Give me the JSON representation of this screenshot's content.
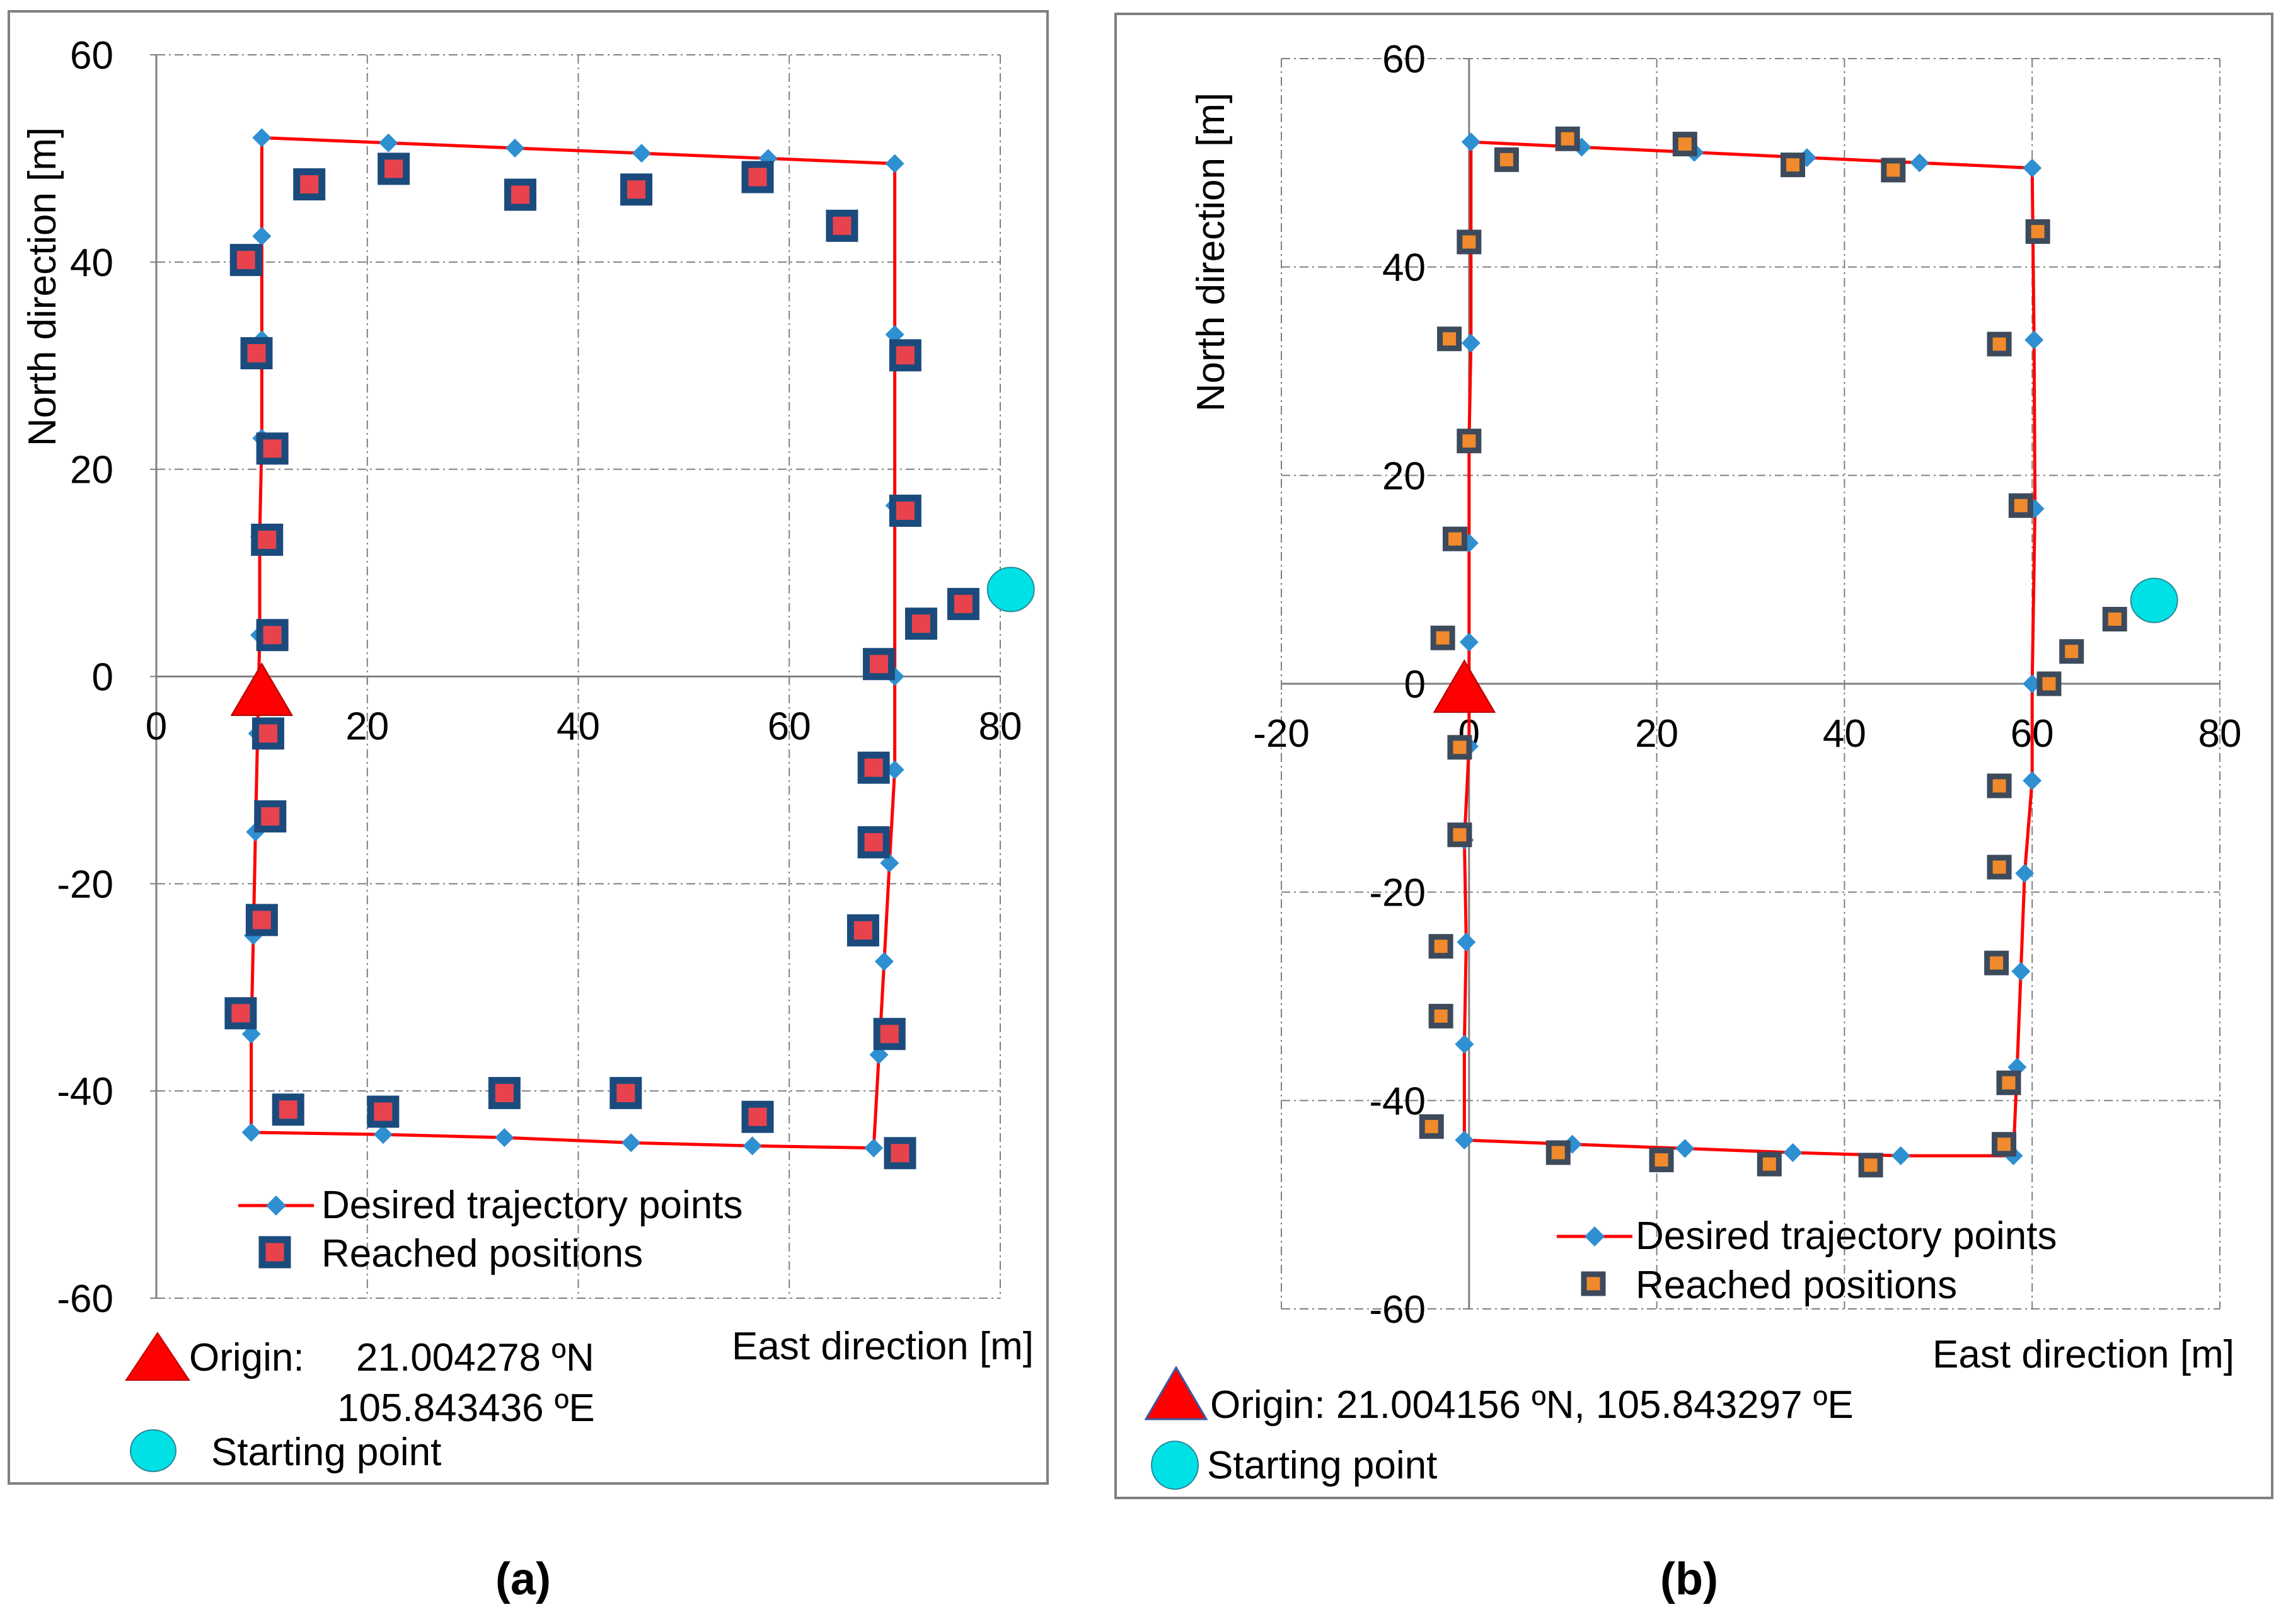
{
  "chart_data": [
    {
      "id": "a",
      "type": "scatter",
      "panel_label": "(a)",
      "title": "",
      "xlabel": "East direction [m]",
      "ylabel": "North direction [m]",
      "xlim": [
        0,
        80
      ],
      "ylim": [
        -60,
        60
      ],
      "x_ticks": [
        0,
        20,
        40,
        60,
        80
      ],
      "y_ticks": [
        -60,
        -40,
        -20,
        0,
        20,
        40,
        60
      ],
      "grid": true,
      "legend_position": "bottom-center",
      "series": [
        {
          "name": "Desired trajectory points",
          "style": "line-diamond",
          "line_color": "#ff0000",
          "marker_color": "#2e8fd1",
          "points": [
            [
              10,
              52
            ],
            [
              22,
              51.5
            ],
            [
              34,
              51
            ],
            [
              46,
              50.5
            ],
            [
              58,
              50
            ],
            [
              70,
              49.5
            ],
            [
              70,
              33
            ],
            [
              70,
              16.5
            ],
            [
              70,
              0
            ],
            [
              70,
              -9
            ],
            [
              69.5,
              -18
            ],
            [
              69,
              -27.5
            ],
            [
              68.5,
              -36.5
            ],
            [
              68,
              -45.5
            ],
            [
              56.5,
              -45.3
            ],
            [
              45,
              -45
            ],
            [
              33,
              -44.5
            ],
            [
              21.5,
              -44.2
            ],
            [
              9,
              -44
            ],
            [
              9,
              -34.5
            ],
            [
              9.2,
              -25
            ],
            [
              9.4,
              -15
            ],
            [
              9.6,
              -5.5
            ],
            [
              9.8,
              4
            ],
            [
              9.8,
              13.5
            ],
            [
              10,
              23
            ],
            [
              10,
              32.5
            ],
            [
              10,
              42.5
            ],
            [
              10,
              52
            ]
          ]
        },
        {
          "name": "Reached positions",
          "style": "square",
          "fill_color": "#e8434d",
          "edge_color": "#1b4b7d",
          "points": [
            [
              14.5,
              47.5
            ],
            [
              22.5,
              49
            ],
            [
              34.5,
              46.5
            ],
            [
              45.5,
              47
            ],
            [
              57,
              48.2
            ],
            [
              65,
              43.5
            ],
            [
              71,
              31
            ],
            [
              71,
              16
            ],
            [
              68.5,
              1.2
            ],
            [
              68,
              -8.8
            ],
            [
              68,
              -16
            ],
            [
              67,
              -24.5
            ],
            [
              69.5,
              -34.5
            ],
            [
              70.5,
              -46
            ],
            [
              57,
              -42.5
            ],
            [
              44.5,
              -40.2
            ],
            [
              33,
              -40.2
            ],
            [
              21.5,
              -42
            ],
            [
              12.5,
              -41.8
            ],
            [
              8,
              -32.5
            ],
            [
              10,
              -23.5
            ],
            [
              10.8,
              -13.5
            ],
            [
              10.6,
              -5.5
            ],
            [
              11,
              4
            ],
            [
              10.5,
              13.2
            ],
            [
              11,
              22
            ],
            [
              9.5,
              31.2
            ],
            [
              8.5,
              40.2
            ],
            [
              72.5,
              5.1
            ],
            [
              76.5,
              7
            ]
          ]
        }
      ],
      "markers": [
        {
          "name": "origin",
          "shape": "triangle",
          "color": "#ff0000",
          "x": 10,
          "y": -1.5
        },
        {
          "name": "starting-point",
          "shape": "circle",
          "color": "#00e1e6",
          "x": 81,
          "y": 8.4
        }
      ],
      "annotations": {
        "origin_label": "Origin:",
        "origin_lat": "21.004278 ºN",
        "origin_lon": "105.843436 ºE",
        "start_label": "Starting point"
      }
    },
    {
      "id": "b",
      "type": "scatter",
      "panel_label": "(b)",
      "title": "",
      "xlabel": "East direction [m]",
      "ylabel": "North direction [m]",
      "xlim": [
        -20,
        80
      ],
      "ylim": [
        -60,
        60
      ],
      "x_ticks": [
        -20,
        0,
        20,
        40,
        60,
        80
      ],
      "y_ticks": [
        -60,
        -40,
        -20,
        0,
        20,
        40,
        60
      ],
      "grid": true,
      "legend_position": "bottom-center",
      "series": [
        {
          "name": "Desired trajectory points",
          "style": "line-diamond",
          "line_color": "#ff0000",
          "marker_color": "#2e8fd1",
          "points": [
            [
              0.2,
              52
            ],
            [
              12,
              51.5
            ],
            [
              24,
              51
            ],
            [
              36,
              50.5
            ],
            [
              48,
              50
            ],
            [
              60,
              49.5
            ],
            [
              60.2,
              33
            ],
            [
              60.3,
              16.8
            ],
            [
              60,
              0
            ],
            [
              60,
              -9.3
            ],
            [
              59.2,
              -18.2
            ],
            [
              58.8,
              -27.6
            ],
            [
              58.4,
              -36.8
            ],
            [
              58,
              -45.3
            ],
            [
              46,
              -45.3
            ],
            [
              34.5,
              -45
            ],
            [
              23,
              -44.6
            ],
            [
              11,
              -44.2
            ],
            [
              -0.5,
              -43.8
            ],
            [
              -0.5,
              -34.6
            ],
            [
              -0.3,
              -24.8
            ],
            [
              -0.5,
              -15
            ],
            [
              0,
              -6
            ],
            [
              0,
              4
            ],
            [
              0,
              13.5
            ],
            [
              0,
              23.2
            ],
            [
              0.2,
              32.7
            ],
            [
              0.2,
              42.5
            ],
            [
              0.2,
              52
            ]
          ]
        },
        {
          "name": "Reached positions",
          "style": "square",
          "fill_color": "#f08a2c",
          "edge_color": "#3c4a5c",
          "points": [
            [
              4,
              50.3
            ],
            [
              10.5,
              52.3
            ],
            [
              23,
              51.8
            ],
            [
              34.5,
              49.8
            ],
            [
              45.2,
              49.3
            ],
            [
              60.6,
              43.4
            ],
            [
              56.5,
              32.6
            ],
            [
              58.8,
              17.1
            ],
            [
              61.8,
              0
            ],
            [
              64.2,
              3.1
            ],
            [
              68.8,
              6.2
            ],
            [
              56.5,
              -9.8
            ],
            [
              56.5,
              -17.6
            ],
            [
              56.2,
              -26.8
            ],
            [
              57.5,
              -38.3
            ],
            [
              57,
              -44.2
            ],
            [
              42.8,
              -46.2
            ],
            [
              32,
              -46.1
            ],
            [
              20.5,
              -45.7
            ],
            [
              9.5,
              -45
            ],
            [
              -4,
              -42.5
            ],
            [
              -3,
              -31.9
            ],
            [
              -3,
              -25.2
            ],
            [
              -1,
              -14.5
            ],
            [
              -1,
              -6.1
            ],
            [
              -2.8,
              4.4
            ],
            [
              -1.5,
              13.9
            ],
            [
              0,
              23.3
            ],
            [
              -2.1,
              33.1
            ],
            [
              0,
              42.4
            ]
          ]
        }
      ],
      "markers": [
        {
          "name": "origin",
          "shape": "triangle",
          "color": "#ff0000",
          "x": -0.5,
          "y": -0.5
        },
        {
          "name": "starting-point",
          "shape": "circle",
          "color": "#00e1e6",
          "x": 73,
          "y": 8
        }
      ],
      "annotations": {
        "origin_text": "Origin: 21.004156 ºN, 105.843297 ºE",
        "start_label": "Starting point"
      }
    }
  ]
}
